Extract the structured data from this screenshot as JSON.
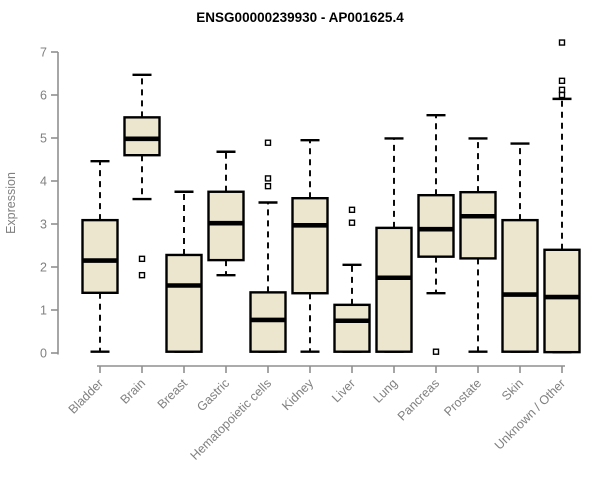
{
  "page": {
    "background": "#FFFFFF"
  },
  "chart_data": {
    "type": "boxplot",
    "title": "ENSG00000239930 - AP001625.4",
    "ylabel": "Expression",
    "xlabel": "",
    "ylim": [
      0,
      7
    ],
    "yticks": [
      0,
      1,
      2,
      3,
      4,
      5,
      6,
      7
    ],
    "grid": "off",
    "legend": "none",
    "categories": [
      "Bladder",
      "Brain",
      "Breast",
      "Gastric",
      "Hematopoietic cells",
      "Kidney",
      "Liver",
      "Lung",
      "Pancreas",
      "Prostate",
      "Skin",
      "Unknown / Other"
    ],
    "boxes": [
      {
        "category": "Bladder",
        "whisker_low": 0.03,
        "q1": 1.4,
        "median": 2.15,
        "q3": 3.09,
        "whisker_high": 4.46,
        "outliers": []
      },
      {
        "category": "Brain",
        "whisker_low": 3.58,
        "q1": 4.6,
        "median": 4.98,
        "q3": 5.48,
        "whisker_high": 6.47,
        "outliers": [
          2.19,
          1.81
        ]
      },
      {
        "category": "Breast",
        "whisker_low": 0.03,
        "q1": 0.03,
        "median": 1.57,
        "q3": 2.28,
        "whisker_high": 3.75,
        "outliers": []
      },
      {
        "category": "Gastric",
        "whisker_low": 1.81,
        "q1": 2.16,
        "median": 3.02,
        "q3": 3.75,
        "whisker_high": 4.68,
        "outliers": []
      },
      {
        "category": "Hematopoietic cells",
        "whisker_low": 0.03,
        "q1": 0.03,
        "median": 0.77,
        "q3": 1.41,
        "whisker_high": 3.5,
        "outliers": [
          4.89,
          4.06,
          3.88
        ]
      },
      {
        "category": "Kidney",
        "whisker_low": 0.03,
        "q1": 1.39,
        "median": 2.97,
        "q3": 3.6,
        "whisker_high": 4.95,
        "outliers": []
      },
      {
        "category": "Liver",
        "whisker_low": 0.03,
        "q1": 0.03,
        "median": 0.75,
        "q3": 1.12,
        "whisker_high": 2.05,
        "outliers": [
          3.33,
          3.03
        ]
      },
      {
        "category": "Lung",
        "whisker_low": 0.03,
        "q1": 0.03,
        "median": 1.75,
        "q3": 2.91,
        "whisker_high": 4.99,
        "outliers": []
      },
      {
        "category": "Pancreas",
        "whisker_low": 1.39,
        "q1": 2.24,
        "median": 2.88,
        "q3": 3.67,
        "whisker_high": 5.53,
        "outliers": [
          0.03
        ]
      },
      {
        "category": "Prostate",
        "whisker_low": 0.03,
        "q1": 2.2,
        "median": 3.18,
        "q3": 3.74,
        "whisker_high": 4.99,
        "outliers": []
      },
      {
        "category": "Skin",
        "whisker_low": 0.03,
        "q1": 0.03,
        "median": 1.36,
        "q3": 3.09,
        "whisker_high": 4.87,
        "outliers": []
      },
      {
        "category": "Unknown / Other",
        "whisker_low": 0.02,
        "q1": 0.02,
        "median": 1.3,
        "q3": 2.4,
        "whisker_high": 5.91,
        "outliers": [
          7.22,
          6.33,
          6.12,
          6.0
        ]
      }
    ],
    "colors": {
      "box_fill": "#ECE6CE",
      "box_border": "#000000",
      "median": "#000000",
      "whisker": "#000000",
      "outlier_stroke": "#000000",
      "outlier_fill": "#FFFFFF",
      "axis_line": "#8F8F8F",
      "axis_text": "#808080",
      "title": "#000000",
      "background": "#FFFFFF"
    }
  }
}
